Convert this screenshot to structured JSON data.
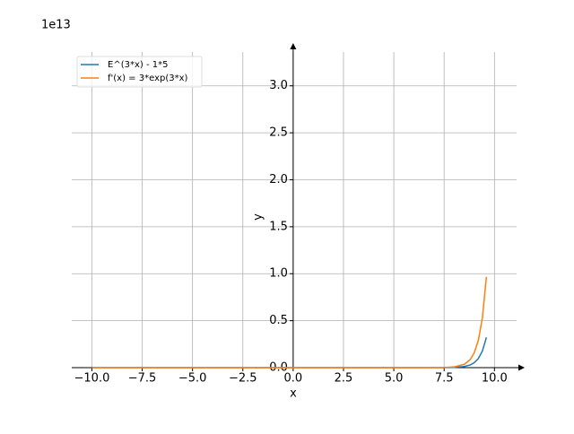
{
  "chart_data": {
    "type": "line",
    "offset_label": "1e13",
    "xlabel": "x",
    "ylabel": "y",
    "x": [
      -10,
      -5,
      0,
      5,
      7,
      7.5,
      8,
      8.5,
      8.8,
      9,
      9.2,
      9.4,
      9.6
    ],
    "series": [
      {
        "name": "E^(3*x) - 1*5",
        "color": "#1f77b4",
        "values": [
          0,
          0,
          0,
          0,
          0.000132,
          0.000591,
          0.00265,
          0.0119,
          0.0292,
          0.0532,
          0.0969,
          0.1767,
          0.322
        ]
      },
      {
        "name": "f'(x) = 3*exp(3*x)",
        "color": "#ff7f0e",
        "values": [
          0,
          0,
          0,
          0,
          0.000396,
          0.00177,
          0.00795,
          0.0356,
          0.0876,
          0.16,
          0.291,
          0.53,
          0.966
        ]
      }
    ],
    "xlim": [
      -11,
      11.1
    ],
    "ylim": [
      0,
      3.36
    ],
    "xticks": [
      {
        "value": -10,
        "label": "−10.0"
      },
      {
        "value": -7.5,
        "label": "−7.5"
      },
      {
        "value": -5,
        "label": "−5.0"
      },
      {
        "value": -2.5,
        "label": "−2.5"
      },
      {
        "value": 0,
        "label": "0.0"
      },
      2.5,
      {
        "value": 5,
        "label": "5.0"
      },
      7.5,
      {
        "value": 10,
        "label": "10.0"
      }
    ],
    "yticks": [
      {
        "value": 0,
        "label": "0.0"
      },
      0.5,
      {
        "value": 1,
        "label": "1.0"
      },
      1.5,
      {
        "value": 2,
        "label": "2.0"
      },
      2.5,
      {
        "value": 3,
        "label": "3.0"
      }
    ],
    "grid": true,
    "legend": "upper left"
  }
}
